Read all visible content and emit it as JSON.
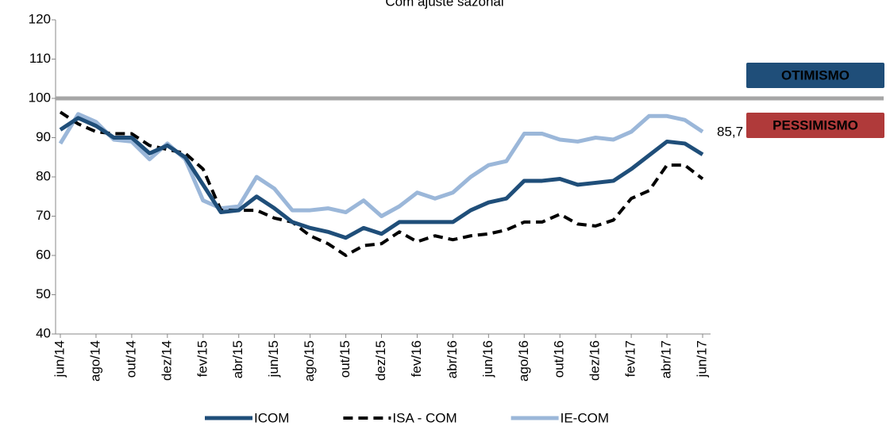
{
  "chart_data": {
    "type": "line",
    "subtitle": "Com ajuste sazonal",
    "categories": [
      "jun/14",
      null,
      "ago/14",
      null,
      "out/14",
      null,
      "dez/14",
      null,
      "fev/15",
      null,
      "abr/15",
      null,
      "jun/15",
      null,
      "ago/15",
      null,
      "out/15",
      null,
      "dez/15",
      null,
      "fev/16",
      null,
      "abr/16",
      null,
      "jun/16",
      null,
      "ago/16",
      null,
      "out/16",
      null,
      "dez/16",
      null,
      "fev/17",
      null,
      "abr/17",
      null,
      "jun/17"
    ],
    "series": [
      {
        "name": "ICOM",
        "color": "#1f4e79",
        "dash": false,
        "values": [
          92,
          95,
          93,
          90,
          90,
          86,
          88,
          85,
          78,
          71,
          71.5,
          75,
          72,
          68.5,
          67,
          66,
          64.5,
          67,
          65.5,
          68.5,
          68.5,
          68.5,
          68.5,
          71.5,
          73.5,
          74.5,
          79,
          79,
          79.5,
          78,
          78.5,
          79,
          82,
          85.5,
          89,
          88.5,
          85.7
        ],
        "value_labels": [
          null,
          null,
          null,
          null,
          null,
          null,
          null,
          null,
          null,
          null,
          null,
          null,
          null,
          null,
          null,
          null,
          null,
          null,
          null,
          null,
          null,
          null,
          null,
          null,
          null,
          null,
          null,
          null,
          null,
          null,
          null,
          null,
          null,
          null,
          null,
          null,
          "85,7"
        ]
      },
      {
        "name": "ISA - COM",
        "color": "#000000",
        "dash": true,
        "values": [
          96.5,
          93.5,
          91.5,
          91,
          91,
          88,
          87,
          86,
          82,
          71.5,
          71.5,
          71.5,
          69.5,
          68.5,
          65,
          63,
          60,
          62.5,
          63,
          66,
          63.5,
          65,
          64,
          65,
          65.5,
          66.5,
          68.5,
          68.5,
          70.5,
          68,
          67.5,
          69,
          74.5,
          76.5,
          83,
          83,
          79.5
        ]
      },
      {
        "name": "IE-COM",
        "color": "#9bb7d9",
        "dash": false,
        "values": [
          88.5,
          96,
          94,
          89.5,
          89,
          84.5,
          88.5,
          84.5,
          74,
          72,
          72.5,
          80,
          77,
          71.5,
          71.5,
          72,
          71,
          74,
          70,
          72.5,
          76,
          74.5,
          76,
          80,
          83,
          84,
          91,
          91,
          89.5,
          89,
          90,
          89.5,
          91.5,
          95.5,
          95.5,
          94.5,
          91.5
        ]
      }
    ],
    "reference_line": 100,
    "zones": [
      {
        "label": "OTIMISMO",
        "color": "#1f4e79"
      },
      {
        "label": "PESSIMISMO",
        "color": "#b03a3a"
      }
    ],
    "ylim": [
      40,
      120
    ],
    "yticks": [
      40,
      50,
      60,
      70,
      80,
      90,
      100,
      110,
      120
    ]
  }
}
